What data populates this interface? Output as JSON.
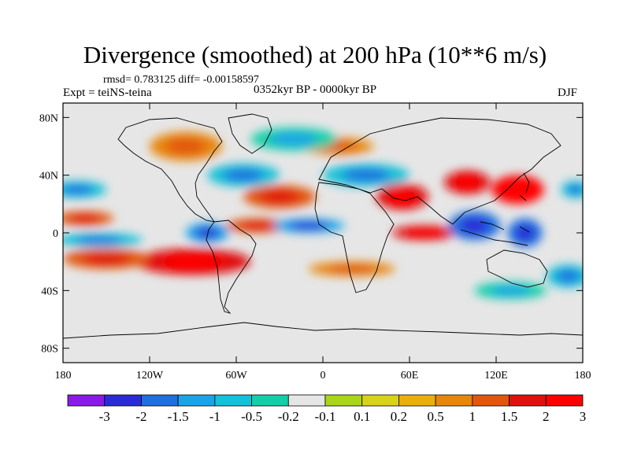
{
  "title": "Divergence (smoothed) at 200 hPa (10**6 m/s)",
  "stats": "rmsd= 0.783125 diff= -0.00158597",
  "experiment": "Expt = teiNS-teina",
  "period": "0352kyr BP - 0000kyr BP",
  "season": "DJF",
  "lat_ticks": [
    "80N",
    "40N",
    "0",
    "40S",
    "80S"
  ],
  "lon_ticks": [
    "180",
    "120W",
    "60W",
    "0",
    "60E",
    "120E",
    "180"
  ],
  "chart_data": {
    "type": "heatmap",
    "title": "Divergence (smoothed) at 200 hPa (10**6 m/s)",
    "variable": "divergence",
    "units": "10**6 m/s",
    "xaxis": {
      "ticks": [
        -180,
        -120,
        -60,
        0,
        60,
        120,
        180
      ],
      "labels": [
        "180",
        "120W",
        "60W",
        "0",
        "60E",
        "120E",
        "180"
      ],
      "range": [
        -180,
        180
      ]
    },
    "yaxis": {
      "ticks": [
        80,
        40,
        0,
        -40,
        -80
      ],
      "labels": [
        "80N",
        "40N",
        "0",
        "40S",
        "80S"
      ],
      "range": [
        -90,
        90
      ]
    },
    "colorbar": {
      "labels": [
        "-3",
        "-2",
        "-1.5",
        "-1",
        "-0.5",
        "-0.2",
        "-0.1",
        "0.1",
        "0.2",
        "0.5",
        "1",
        "1.5",
        "2",
        "3"
      ],
      "colors": [
        "#8a1be6",
        "#2b2bd6",
        "#1f6fe0",
        "#1aa3e8",
        "#13c1d8",
        "#12cfa8",
        "#e6e6e6",
        "#a9d618",
        "#d8d218",
        "#e9b00c",
        "#e8860c",
        "#e2560e",
        "#e01010",
        "#ff0000"
      ]
    },
    "features": [
      {
        "lon": 135,
        "lat": 30,
        "rx": 18,
        "ry": 10,
        "level": 3
      },
      {
        "lon": 100,
        "lat": 35,
        "rx": 16,
        "ry": 8,
        "level": 1.5
      },
      {
        "lon": 55,
        "lat": 25,
        "rx": 18,
        "ry": 9,
        "level": 1.5
      },
      {
        "lon": 70,
        "lat": 0,
        "rx": 22,
        "ry": 5,
        "level": 1.5
      },
      {
        "lon": -30,
        "lat": 25,
        "rx": 25,
        "ry": 8,
        "level": 1
      },
      {
        "lon": -45,
        "lat": 5,
        "rx": 22,
        "ry": 5,
        "level": 1
      },
      {
        "lon": -90,
        "lat": -20,
        "rx": 40,
        "ry": 9,
        "level": 1.5
      },
      {
        "lon": -150,
        "lat": -18,
        "rx": 30,
        "ry": 7,
        "level": 1
      },
      {
        "lon": -165,
        "lat": 10,
        "rx": 20,
        "ry": 5,
        "level": 1
      },
      {
        "lon": -95,
        "lat": 60,
        "rx": 25,
        "ry": 10,
        "level": 0.5
      },
      {
        "lon": 10,
        "lat": 60,
        "rx": 25,
        "ry": 6,
        "level": 0.5
      },
      {
        "lon": 20,
        "lat": -25,
        "rx": 30,
        "ry": 5,
        "level": 0.5
      },
      {
        "lon": 105,
        "lat": 5,
        "rx": 18,
        "ry": 10,
        "level": -2
      },
      {
        "lon": 140,
        "lat": 0,
        "rx": 12,
        "ry": 10,
        "level": -2
      },
      {
        "lon": -80,
        "lat": 0,
        "rx": 15,
        "ry": 7,
        "level": -1.5
      },
      {
        "lon": -10,
        "lat": 5,
        "rx": 25,
        "ry": 5,
        "level": -1.5
      },
      {
        "lon": -155,
        "lat": -5,
        "rx": 30,
        "ry": 5,
        "level": -1
      },
      {
        "lon": -170,
        "lat": 30,
        "rx": 20,
        "ry": 6,
        "level": -1
      },
      {
        "lon": 175,
        "lat": 30,
        "rx": 10,
        "ry": 6,
        "level": -1
      },
      {
        "lon": -55,
        "lat": 40,
        "rx": 25,
        "ry": 8,
        "level": -1
      },
      {
        "lon": 30,
        "lat": 40,
        "rx": 30,
        "ry": 8,
        "level": -1
      },
      {
        "lon": -20,
        "lat": 65,
        "rx": 30,
        "ry": 8,
        "level": -0.5
      },
      {
        "lon": 130,
        "lat": -40,
        "rx": 25,
        "ry": 6,
        "level": -0.5
      },
      {
        "lon": 170,
        "lat": -30,
        "rx": 15,
        "ry": 8,
        "level": -1
      }
    ]
  }
}
